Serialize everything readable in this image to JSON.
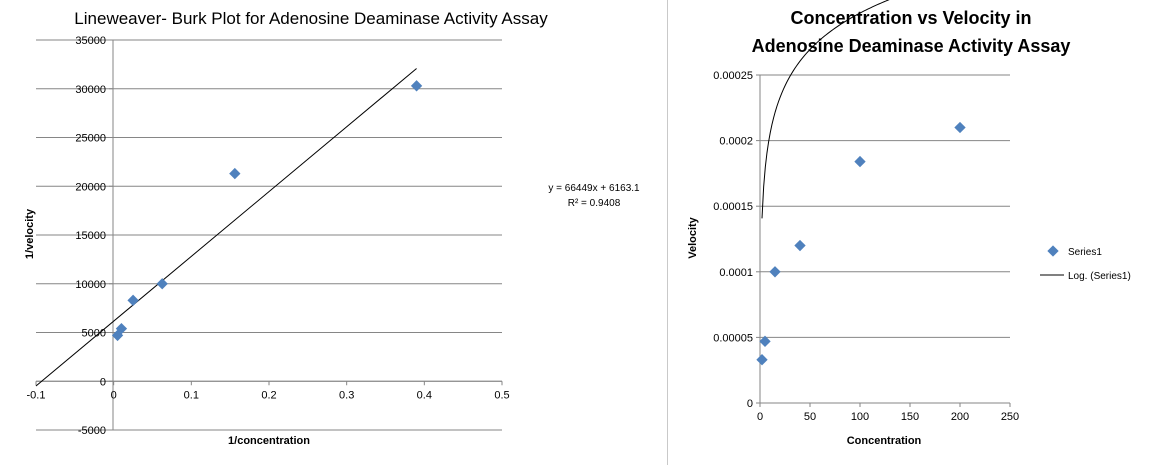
{
  "chart_data": [
    {
      "type": "scatter",
      "title": "Lineweaver- Burk Plot for Adenosine Deaminase Activity Assay",
      "xlabel": "1/concentration",
      "ylabel": "1/velocity",
      "xlim": [
        -0.1,
        0.5
      ],
      "ylim": [
        -5000,
        35000
      ],
      "x_ticks": [
        "-0.1",
        "0",
        "0.1",
        "0.2",
        "0.3",
        "0.4",
        "0.5"
      ],
      "y_ticks": [
        "-5000",
        "0",
        "5000",
        "10000",
        "15000",
        "20000",
        "25000",
        "30000",
        "35000"
      ],
      "grid": "horizontal",
      "series": [
        {
          "x": [
            0.005,
            0.01,
            0.025,
            0.0625,
            0.156,
            0.39
          ],
          "y": [
            4700,
            5400,
            8300,
            10000,
            21300,
            30300
          ],
          "color": "#4f81bd"
        }
      ],
      "trendline": {
        "type": "linear",
        "slope": 66449,
        "intercept": 6163.1,
        "x_range": [
          -0.1,
          0.39
        ]
      },
      "annotation": [
        "y = 66449x + 6163.1",
        "R² = 0.9408"
      ]
    },
    {
      "type": "scatter",
      "title": [
        "Concentration vs Velocity in",
        "Adenosine Deaminase Activity Assay"
      ],
      "xlabel": "Concentration",
      "ylabel": "Velocity",
      "xlim": [
        0,
        250
      ],
      "ylim": [
        0,
        0.00025
      ],
      "x_ticks": [
        "0",
        "50",
        "100",
        "150",
        "200",
        "250"
      ],
      "y_ticks": [
        "0",
        "0.00005",
        "0.0001",
        "0.00015",
        "0.0002",
        "0.00025"
      ],
      "grid": "horizontal",
      "series": [
        {
          "name": "Series1",
          "x": [
            2,
            5,
            15,
            40,
            100,
            200
          ],
          "y": [
            3.3e-05,
            4.7e-05,
            0.0001,
            0.00012,
            0.000184,
            0.00021
          ],
          "color": "#4f81bd"
        }
      ],
      "trendline": {
        "type": "logarithmic",
        "name": "Log. (Series1)",
        "a": 4e-05,
        "b": 0.000113,
        "x_range": [
          2,
          200
        ]
      },
      "legend": "right"
    }
  ]
}
